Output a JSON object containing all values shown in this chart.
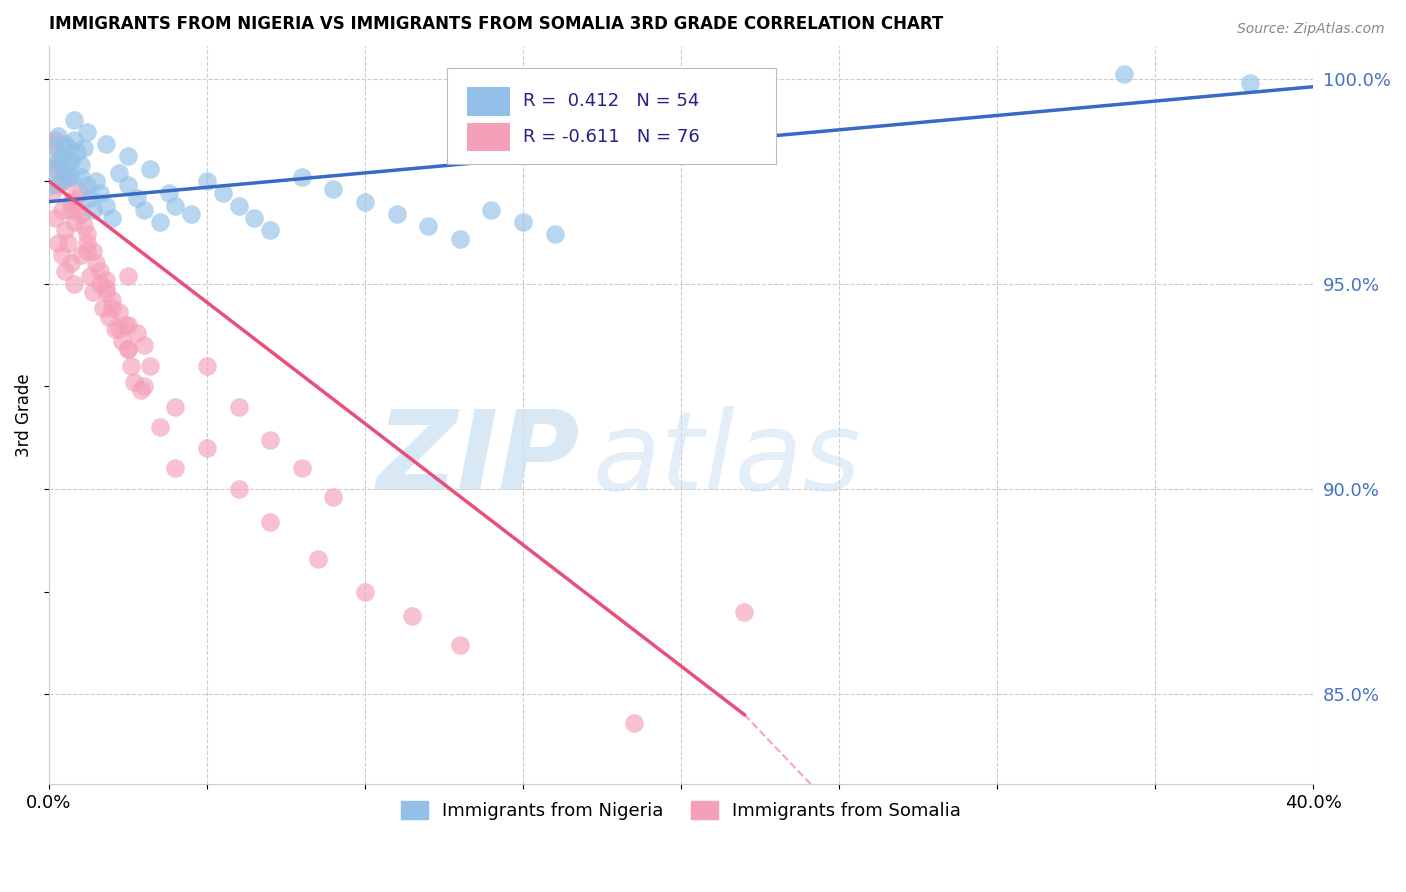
{
  "title": "IMMIGRANTS FROM NIGERIA VS IMMIGRANTS FROM SOMALIA 3RD GRADE CORRELATION CHART",
  "source": "Source: ZipAtlas.com",
  "ylabel": "3rd Grade",
  "x_min": 0.0,
  "x_max": 0.4,
  "y_min": 0.828,
  "y_max": 1.008,
  "x_ticks": [
    0.0,
    0.05,
    0.1,
    0.15,
    0.2,
    0.25,
    0.3,
    0.35,
    0.4
  ],
  "y_ticks": [
    0.85,
    0.9,
    0.95,
    1.0
  ],
  "y_tick_labels": [
    "85.0%",
    "90.0%",
    "95.0%",
    "100.0%"
  ],
  "nigeria_R": 0.412,
  "nigeria_N": 54,
  "somalia_R": -0.611,
  "somalia_N": 76,
  "nigeria_color": "#92C0E8",
  "somalia_color": "#F4A0B8",
  "nigeria_line_color": "#3A6BC4",
  "somalia_line_color": "#E8507A",
  "nigeria_x": [
    0.001,
    0.002,
    0.002,
    0.003,
    0.003,
    0.004,
    0.004,
    0.005,
    0.005,
    0.006,
    0.006,
    0.007,
    0.007,
    0.008,
    0.009,
    0.01,
    0.01,
    0.011,
    0.012,
    0.013,
    0.014,
    0.015,
    0.016,
    0.018,
    0.02,
    0.022,
    0.025,
    0.028,
    0.03,
    0.032,
    0.035,
    0.038,
    0.04,
    0.045,
    0.05,
    0.055,
    0.06,
    0.065,
    0.07,
    0.08,
    0.09,
    0.1,
    0.11,
    0.12,
    0.13,
    0.14,
    0.15,
    0.16,
    0.008,
    0.012,
    0.018,
    0.025,
    0.34,
    0.38
  ],
  "nigeria_y": [
    0.974,
    0.978,
    0.983,
    0.98,
    0.986,
    0.975,
    0.981,
    0.977,
    0.984,
    0.979,
    0.983,
    0.976,
    0.98,
    0.985,
    0.982,
    0.979,
    0.976,
    0.983,
    0.974,
    0.971,
    0.968,
    0.975,
    0.972,
    0.969,
    0.966,
    0.977,
    0.974,
    0.971,
    0.968,
    0.978,
    0.965,
    0.972,
    0.969,
    0.967,
    0.975,
    0.972,
    0.969,
    0.966,
    0.963,
    0.976,
    0.973,
    0.97,
    0.967,
    0.964,
    0.961,
    0.968,
    0.965,
    0.962,
    0.99,
    0.987,
    0.984,
    0.981,
    1.001,
    0.999
  ],
  "somalia_x": [
    0.001,
    0.001,
    0.002,
    0.002,
    0.003,
    0.003,
    0.004,
    0.004,
    0.005,
    0.005,
    0.006,
    0.006,
    0.007,
    0.007,
    0.008,
    0.008,
    0.009,
    0.01,
    0.01,
    0.011,
    0.012,
    0.013,
    0.014,
    0.015,
    0.016,
    0.017,
    0.018,
    0.019,
    0.02,
    0.021,
    0.022,
    0.023,
    0.024,
    0.025,
    0.025,
    0.026,
    0.027,
    0.028,
    0.029,
    0.03,
    0.002,
    0.004,
    0.006,
    0.008,
    0.01,
    0.012,
    0.014,
    0.016,
    0.018,
    0.02,
    0.022,
    0.025,
    0.03,
    0.035,
    0.04,
    0.05,
    0.06,
    0.07,
    0.08,
    0.09,
    0.003,
    0.007,
    0.012,
    0.018,
    0.025,
    0.032,
    0.04,
    0.05,
    0.06,
    0.07,
    0.085,
    0.1,
    0.115,
    0.13,
    0.185,
    0.22
  ],
  "somalia_y": [
    0.984,
    0.972,
    0.979,
    0.966,
    0.974,
    0.96,
    0.968,
    0.957,
    0.963,
    0.953,
    0.975,
    0.96,
    0.97,
    0.955,
    0.965,
    0.95,
    0.968,
    0.972,
    0.957,
    0.964,
    0.958,
    0.952,
    0.948,
    0.955,
    0.95,
    0.944,
    0.949,
    0.942,
    0.946,
    0.939,
    0.943,
    0.936,
    0.94,
    0.934,
    0.952,
    0.93,
    0.926,
    0.938,
    0.924,
    0.935,
    0.985,
    0.98,
    0.976,
    0.971,
    0.967,
    0.962,
    0.958,
    0.953,
    0.948,
    0.944,
    0.939,
    0.934,
    0.925,
    0.915,
    0.905,
    0.93,
    0.92,
    0.912,
    0.905,
    0.898,
    0.978,
    0.968,
    0.96,
    0.951,
    0.94,
    0.93,
    0.92,
    0.91,
    0.9,
    0.892,
    0.883,
    0.875,
    0.869,
    0.862,
    0.843,
    0.87
  ],
  "nigeria_trend": [
    0.0,
    0.4,
    0.97,
    0.998
  ],
  "somalia_trend_solid": [
    0.0,
    0.22,
    0.975,
    0.845
  ],
  "somalia_trend_dashed": [
    0.22,
    0.4,
    0.845,
    0.7
  ]
}
